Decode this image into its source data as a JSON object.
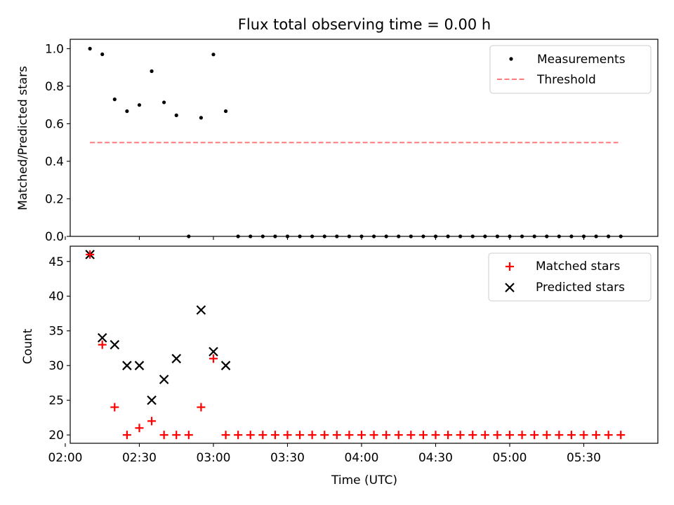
{
  "chart_data": [
    {
      "type": "scatter",
      "title": "Flux total observing time = 0.00 h",
      "ylabel": "Matched/Predicted stars",
      "xlabel": "",
      "ylim": [
        0,
        1.05
      ],
      "xlim": [
        "02:02",
        "06:00"
      ],
      "yticks": [
        0.0,
        0.2,
        0.4,
        0.6,
        0.8,
        1.0
      ],
      "ytick_labels": [
        "0.0",
        "0.2",
        "0.4",
        "0.6",
        "0.8",
        "1.0"
      ],
      "xticks_minutes": [
        120,
        150,
        180,
        210,
        240,
        270,
        300,
        330
      ],
      "grid": false,
      "legend_position": "top-right",
      "series": [
        {
          "name": "Measurements",
          "marker": "dot",
          "color": "#000000",
          "x": [
            "02:10",
            "02:15",
            "02:20",
            "02:25",
            "02:30",
            "02:35",
            "02:40",
            "02:45",
            "02:50",
            "02:55",
            "03:00",
            "03:05",
            "03:10",
            "03:15",
            "03:20",
            "03:25",
            "03:30",
            "03:35",
            "03:40",
            "03:45",
            "03:50",
            "03:55",
            "04:00",
            "04:05",
            "04:10",
            "04:15",
            "04:20",
            "04:25",
            "04:30",
            "04:35",
            "04:40",
            "04:45",
            "04:50",
            "04:55",
            "05:00",
            "05:05",
            "05:10",
            "05:15",
            "05:20",
            "05:25",
            "05:30",
            "05:35",
            "05:40",
            "05:45"
          ],
          "y": [
            1.0,
            0.97,
            0.73,
            0.667,
            0.7,
            0.88,
            0.714,
            0.645,
            0.0,
            0.632,
            0.969,
            0.667,
            0,
            0,
            0,
            0,
            0,
            0,
            0,
            0,
            0,
            0,
            0,
            0,
            0,
            0,
            0,
            0,
            0,
            0,
            0,
            0,
            0,
            0,
            0,
            0,
            0,
            0,
            0,
            0,
            0,
            0,
            0,
            0
          ]
        },
        {
          "name": "Threshold",
          "marker": "dashed-line",
          "color": "#ff7b7b",
          "x": [
            "02:10",
            "05:45"
          ],
          "y": [
            0.5,
            0.5
          ]
        }
      ]
    },
    {
      "type": "scatter",
      "title": "",
      "ylabel": "Count",
      "xlabel": "Time (UTC)",
      "ylim": [
        18.8,
        47.2
      ],
      "xlim": [
        "02:02",
        "06:00"
      ],
      "yticks": [
        20,
        25,
        30,
        35,
        40,
        45
      ],
      "ytick_labels": [
        "20",
        "25",
        "30",
        "35",
        "40",
        "45"
      ],
      "xticks_minutes": [
        120,
        150,
        180,
        210,
        240,
        270,
        300,
        330
      ],
      "xtick_labels": [
        "02:00",
        "02:30",
        "03:00",
        "03:30",
        "04:00",
        "04:30",
        "05:00",
        "05:30"
      ],
      "grid": false,
      "legend_position": "top-right",
      "series": [
        {
          "name": "Matched stars",
          "marker": "plus",
          "color": "#ff0000",
          "x": [
            "02:10",
            "02:15",
            "02:20",
            "02:25",
            "02:30",
            "02:35",
            "02:40",
            "02:45",
            "02:50",
            "02:55",
            "03:00",
            "03:05",
            "03:10",
            "03:15",
            "03:20",
            "03:25",
            "03:30",
            "03:35",
            "03:40",
            "03:45",
            "03:50",
            "03:55",
            "04:00",
            "04:05",
            "04:10",
            "04:15",
            "04:20",
            "04:25",
            "04:30",
            "04:35",
            "04:40",
            "04:45",
            "04:50",
            "04:55",
            "05:00",
            "05:05",
            "05:10",
            "05:15",
            "05:20",
            "05:25",
            "05:30",
            "05:35",
            "05:40",
            "05:45"
          ],
          "y": [
            46,
            33,
            24,
            20,
            21,
            22,
            20,
            20,
            20,
            24,
            31,
            20,
            20,
            20,
            20,
            20,
            20,
            20,
            20,
            20,
            20,
            20,
            20,
            20,
            20,
            20,
            20,
            20,
            20,
            20,
            20,
            20,
            20,
            20,
            20,
            20,
            20,
            20,
            20,
            20,
            20,
            20,
            20,
            20
          ]
        },
        {
          "name": "Predicted stars",
          "marker": "x",
          "color": "#000000",
          "x": [
            "02:10",
            "02:15",
            "02:20",
            "02:25",
            "02:30",
            "02:35",
            "02:40",
            "02:45",
            "02:55",
            "03:00",
            "03:05"
          ],
          "y": [
            46,
            34,
            33,
            30,
            30,
            25,
            28,
            31,
            38,
            32,
            30
          ]
        }
      ]
    }
  ]
}
